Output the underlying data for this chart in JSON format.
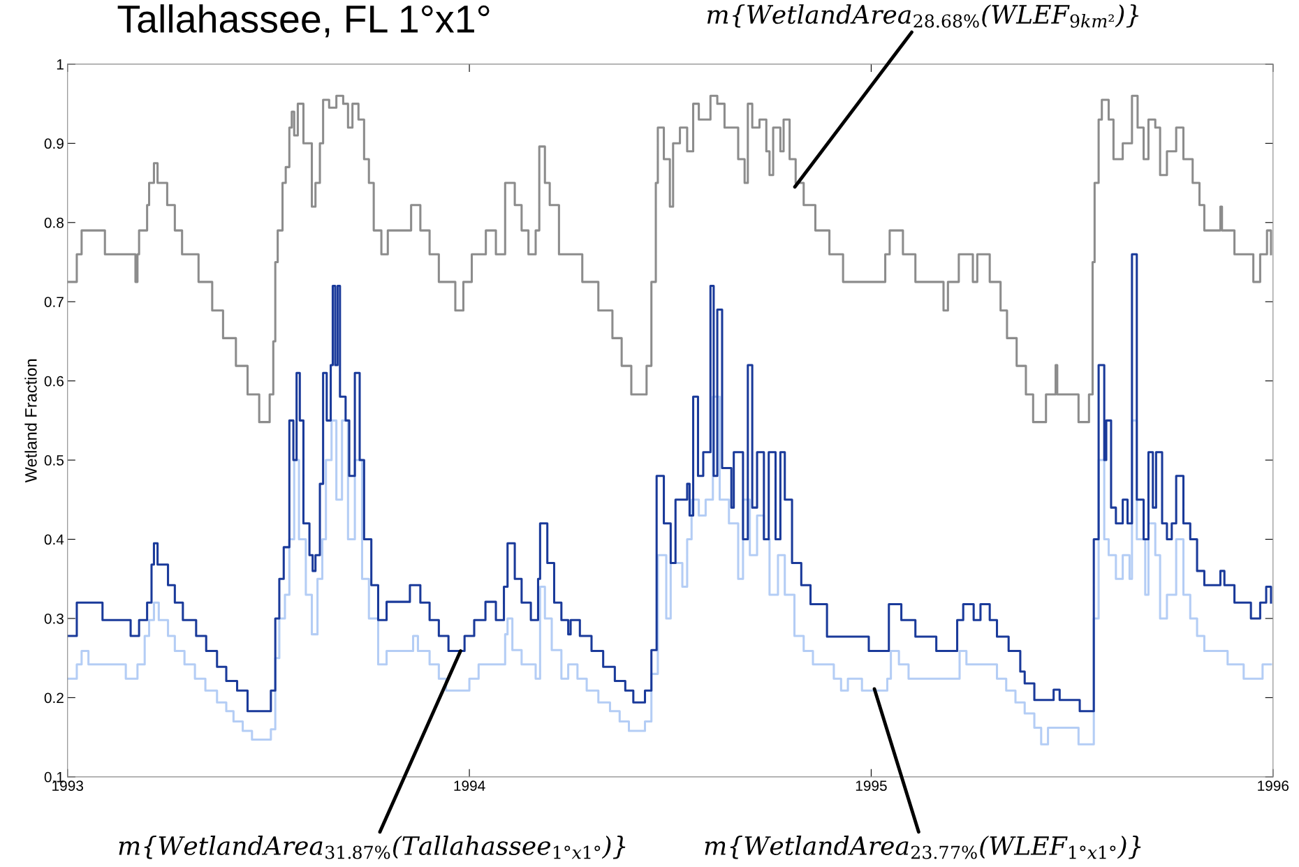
{
  "chart_data": {
    "type": "step",
    "title": "Tallahassee, FL 1°x1°",
    "ylabel": "Wetland Fraction",
    "xlim": [
      1993,
      1996
    ],
    "xticks": [
      1993,
      1994,
      1995,
      1996
    ],
    "ylim": [
      0.1,
      1
    ],
    "yticks": [
      0.1,
      0.2,
      0.3,
      0.4,
      0.5,
      0.6,
      0.7,
      0.8,
      0.9,
      1
    ],
    "grid": false,
    "line_style": "solid",
    "marker": "none",
    "series": [
      {
        "color": "#8c8c8c",
        "x": [
          1993.0,
          1993.023,
          1993.035,
          1993.093,
          1993.169,
          1993.174,
          1993.178,
          1993.198,
          1993.203,
          1993.215,
          1993.224,
          1993.248,
          1993.267,
          1993.285,
          1993.326,
          1993.36,
          1993.387,
          1993.419,
          1993.448,
          1993.477,
          1993.503,
          1993.512,
          1993.517,
          1993.523,
          1993.535,
          1993.543,
          1993.552,
          1993.558,
          1993.564,
          1993.573,
          1993.587,
          1993.608,
          1993.617,
          1993.628,
          1993.636,
          1993.651,
          1993.669,
          1993.686,
          1993.698,
          1993.709,
          1993.724,
          1993.738,
          1993.75,
          1993.762,
          1993.781,
          1993.797,
          1993.855,
          1993.878,
          1993.901,
          1993.924,
          1993.965,
          1993.985,
          1994.006,
          1994.041,
          1994.066,
          1994.089,
          1994.113,
          1994.13,
          1994.147,
          1994.165,
          1994.174,
          1994.188,
          1994.2,
          1994.223,
          1994.281,
          1994.321,
          1994.356,
          1994.379,
          1994.403,
          1994.441,
          1994.453,
          1994.464,
          1994.469,
          1994.484,
          1994.499,
          1994.507,
          1994.524,
          1994.542,
          1994.557,
          1994.571,
          1994.6,
          1994.617,
          1994.635,
          1994.669,
          1994.685,
          1994.693,
          1994.704,
          1994.722,
          1994.739,
          1994.747,
          1994.756,
          1994.774,
          1994.782,
          1994.797,
          1994.812,
          1994.832,
          1994.861,
          1994.896,
          1994.93,
          1995.035,
          1995.046,
          1995.079,
          1995.11,
          1995.18,
          1995.191,
          1995.218,
          1995.253,
          1995.264,
          1995.295,
          1995.322,
          1995.338,
          1995.362,
          1995.385,
          1995.403,
          1995.435,
          1995.459,
          1995.463,
          1995.516,
          1995.542,
          1995.551,
          1995.556,
          1995.566,
          1995.574,
          1995.591,
          1995.603,
          1995.626,
          1995.649,
          1995.663,
          1995.678,
          1995.69,
          1995.707,
          1995.719,
          1995.736,
          1995.759,
          1995.777,
          1995.8,
          1995.817,
          1995.829,
          1995.869,
          1995.873,
          1995.904,
          1995.951,
          1995.968,
          1995.985,
          1995.995
        ],
        "values": [
          0.725,
          0.76,
          0.79,
          0.76,
          0.725,
          0.76,
          0.79,
          0.822,
          0.85,
          0.875,
          0.85,
          0.822,
          0.79,
          0.76,
          0.725,
          0.689,
          0.654,
          0.619,
          0.583,
          0.548,
          0.583,
          0.65,
          0.75,
          0.79,
          0.85,
          0.87,
          0.92,
          0.94,
          0.91,
          0.95,
          0.9,
          0.82,
          0.85,
          0.9,
          0.955,
          0.945,
          0.96,
          0.95,
          0.92,
          0.95,
          0.93,
          0.88,
          0.85,
          0.79,
          0.76,
          0.79,
          0.822,
          0.79,
          0.76,
          0.725,
          0.689,
          0.725,
          0.76,
          0.79,
          0.76,
          0.85,
          0.822,
          0.79,
          0.76,
          0.79,
          0.896,
          0.85,
          0.822,
          0.76,
          0.725,
          0.689,
          0.654,
          0.619,
          0.583,
          0.619,
          0.725,
          0.85,
          0.92,
          0.88,
          0.82,
          0.9,
          0.92,
          0.89,
          0.95,
          0.93,
          0.96,
          0.95,
          0.92,
          0.88,
          0.85,
          0.95,
          0.92,
          0.93,
          0.89,
          0.86,
          0.92,
          0.89,
          0.93,
          0.88,
          0.85,
          0.822,
          0.79,
          0.76,
          0.725,
          0.76,
          0.79,
          0.76,
          0.725,
          0.689,
          0.725,
          0.76,
          0.725,
          0.76,
          0.725,
          0.689,
          0.654,
          0.619,
          0.583,
          0.548,
          0.583,
          0.62,
          0.583,
          0.548,
          0.583,
          0.75,
          0.85,
          0.93,
          0.955,
          0.93,
          0.88,
          0.9,
          0.96,
          0.92,
          0.88,
          0.93,
          0.92,
          0.86,
          0.89,
          0.92,
          0.88,
          0.85,
          0.822,
          0.79,
          0.82,
          0.79,
          0.76,
          0.725,
          0.76,
          0.79,
          0.76
        ]
      },
      {
        "color": "#b4cdf5",
        "x": [
          1993.0,
          1993.023,
          1993.035,
          1993.052,
          1993.145,
          1993.174,
          1993.192,
          1993.203,
          1993.215,
          1993.227,
          1993.25,
          1993.267,
          1993.291,
          1993.317,
          1993.343,
          1993.372,
          1993.395,
          1993.413,
          1993.436,
          1993.459,
          1993.506,
          1993.517,
          1993.527,
          1993.541,
          1993.552,
          1993.564,
          1993.576,
          1993.593,
          1993.608,
          1993.622,
          1993.634,
          1993.643,
          1993.657,
          1993.669,
          1993.683,
          1993.698,
          1993.715,
          1993.733,
          1993.75,
          1993.773,
          1993.794,
          1993.86,
          1993.872,
          1993.901,
          1993.924,
          1993.942,
          1994.0,
          1994.023,
          1994.089,
          1994.095,
          1994.107,
          1994.13,
          1994.165,
          1994.176,
          1994.188,
          1994.205,
          1994.229,
          1994.246,
          1994.269,
          1994.292,
          1994.321,
          1994.35,
          1994.374,
          1994.397,
          1994.437,
          1994.453,
          1994.469,
          1994.49,
          1994.501,
          1994.53,
          1994.542,
          1994.553,
          1994.571,
          1994.588,
          1994.606,
          1994.623,
          1994.646,
          1994.669,
          1994.681,
          1994.698,
          1994.716,
          1994.733,
          1994.747,
          1994.768,
          1994.785,
          1994.809,
          1994.832,
          1994.855,
          1994.907,
          1994.925,
          1994.942,
          1994.977,
          1995.04,
          1995.049,
          1995.069,
          1995.093,
          1995.22,
          1995.237,
          1995.313,
          1995.336,
          1995.359,
          1995.382,
          1995.406,
          1995.423,
          1995.44,
          1995.516,
          1995.554,
          1995.566,
          1995.58,
          1995.591,
          1995.609,
          1995.626,
          1995.643,
          1995.649,
          1995.661,
          1995.682,
          1995.69,
          1995.707,
          1995.719,
          1995.736,
          1995.759,
          1995.777,
          1995.794,
          1995.811,
          1995.829,
          1995.887,
          1995.927,
          1995.974,
          1995.995
        ],
        "values": [
          0.224,
          0.242,
          0.259,
          0.242,
          0.224,
          0.242,
          0.278,
          0.298,
          0.32,
          0.298,
          0.278,
          0.259,
          0.242,
          0.224,
          0.209,
          0.194,
          0.183,
          0.17,
          0.158,
          0.147,
          0.16,
          0.25,
          0.3,
          0.33,
          0.4,
          0.5,
          0.4,
          0.33,
          0.28,
          0.35,
          0.4,
          0.5,
          0.55,
          0.45,
          0.55,
          0.4,
          0.5,
          0.35,
          0.3,
          0.242,
          0.259,
          0.278,
          0.259,
          0.242,
          0.224,
          0.209,
          0.224,
          0.242,
          0.28,
          0.3,
          0.26,
          0.242,
          0.224,
          0.34,
          0.3,
          0.26,
          0.224,
          0.242,
          0.224,
          0.209,
          0.194,
          0.183,
          0.17,
          0.158,
          0.17,
          0.23,
          0.38,
          0.3,
          0.37,
          0.34,
          0.4,
          0.45,
          0.43,
          0.45,
          0.58,
          0.45,
          0.42,
          0.35,
          0.45,
          0.38,
          0.43,
          0.4,
          0.33,
          0.38,
          0.33,
          0.278,
          0.259,
          0.242,
          0.224,
          0.209,
          0.224,
          0.209,
          0.224,
          0.259,
          0.242,
          0.224,
          0.259,
          0.242,
          0.224,
          0.209,
          0.194,
          0.18,
          0.162,
          0.141,
          0.162,
          0.141,
          0.3,
          0.5,
          0.4,
          0.38,
          0.35,
          0.38,
          0.35,
          0.55,
          0.4,
          0.33,
          0.42,
          0.38,
          0.3,
          0.33,
          0.4,
          0.33,
          0.3,
          0.278,
          0.259,
          0.242,
          0.224,
          0.242,
          0.242
        ]
      },
      {
        "color": "#1a3a9a",
        "x": [
          1993.0,
          1993.023,
          1993.087,
          1993.157,
          1993.178,
          1993.198,
          1993.209,
          1993.215,
          1993.224,
          1993.25,
          1993.267,
          1993.287,
          1993.32,
          1993.345,
          1993.372,
          1993.395,
          1993.422,
          1993.448,
          1993.506,
          1993.517,
          1993.527,
          1993.538,
          1993.552,
          1993.562,
          1993.57,
          1993.578,
          1993.587,
          1993.602,
          1993.61,
          1993.617,
          1993.628,
          1993.636,
          1993.645,
          1993.655,
          1993.66,
          1993.666,
          1993.672,
          1993.678,
          1993.692,
          1993.701,
          1993.715,
          1993.727,
          1993.738,
          1993.756,
          1993.773,
          1993.794,
          1993.852,
          1993.878,
          1993.901,
          1993.924,
          1993.948,
          1993.988,
          1994.012,
          1994.04,
          1994.066,
          1994.086,
          1994.095,
          1994.113,
          1994.13,
          1994.153,
          1994.171,
          1994.176,
          1994.194,
          1994.211,
          1994.229,
          1994.246,
          1994.252,
          1994.275,
          1994.304,
          1994.333,
          1994.362,
          1994.388,
          1994.408,
          1994.437,
          1994.453,
          1994.466,
          1994.484,
          1994.501,
          1994.513,
          1994.542,
          1994.548,
          1994.557,
          1994.569,
          1994.582,
          1994.6,
          1994.608,
          1994.617,
          1994.629,
          1994.652,
          1994.658,
          1994.681,
          1994.693,
          1994.704,
          1994.716,
          1994.733,
          1994.745,
          1994.762,
          1994.774,
          1994.785,
          1994.803,
          1994.826,
          1994.849,
          1994.89,
          1994.994,
          1995.044,
          1995.075,
          1995.11,
          1995.162,
          1995.214,
          1995.229,
          1995.255,
          1995.272,
          1995.295,
          1995.313,
          1995.342,
          1995.371,
          1995.382,
          1995.406,
          1995.454,
          1995.469,
          1995.519,
          1995.554,
          1995.566,
          1995.58,
          1995.585,
          1995.597,
          1995.609,
          1995.626,
          1995.638,
          1995.649,
          1995.661,
          1995.678,
          1995.69,
          1995.701,
          1995.709,
          1995.724,
          1995.736,
          1995.748,
          1995.759,
          1995.777,
          1995.794,
          1995.811,
          1995.829,
          1995.869,
          1995.879,
          1995.904,
          1995.945,
          1995.968,
          1995.983,
          1995.995
        ],
        "values": [
          0.278,
          0.32,
          0.298,
          0.278,
          0.298,
          0.32,
          0.368,
          0.395,
          0.368,
          0.342,
          0.32,
          0.298,
          0.278,
          0.259,
          0.239,
          0.221,
          0.209,
          0.183,
          0.209,
          0.3,
          0.35,
          0.39,
          0.55,
          0.5,
          0.61,
          0.55,
          0.42,
          0.38,
          0.36,
          0.38,
          0.47,
          0.61,
          0.55,
          0.62,
          0.72,
          0.62,
          0.72,
          0.58,
          0.55,
          0.48,
          0.61,
          0.5,
          0.4,
          0.342,
          0.298,
          0.321,
          0.342,
          0.32,
          0.298,
          0.278,
          0.259,
          0.278,
          0.298,
          0.321,
          0.298,
          0.34,
          0.395,
          0.35,
          0.32,
          0.298,
          0.35,
          0.42,
          0.37,
          0.32,
          0.298,
          0.28,
          0.298,
          0.278,
          0.259,
          0.239,
          0.221,
          0.209,
          0.194,
          0.209,
          0.26,
          0.48,
          0.42,
          0.37,
          0.45,
          0.47,
          0.43,
          0.58,
          0.48,
          0.51,
          0.72,
          0.48,
          0.69,
          0.49,
          0.44,
          0.51,
          0.4,
          0.62,
          0.44,
          0.51,
          0.4,
          0.51,
          0.4,
          0.51,
          0.45,
          0.37,
          0.342,
          0.318,
          0.277,
          0.259,
          0.318,
          0.298,
          0.277,
          0.259,
          0.298,
          0.318,
          0.298,
          0.318,
          0.298,
          0.277,
          0.259,
          0.233,
          0.218,
          0.197,
          0.21,
          0.197,
          0.183,
          0.4,
          0.62,
          0.5,
          0.55,
          0.44,
          0.42,
          0.45,
          0.42,
          0.76,
          0.45,
          0.4,
          0.51,
          0.44,
          0.51,
          0.42,
          0.4,
          0.42,
          0.48,
          0.42,
          0.4,
          0.36,
          0.342,
          0.36,
          0.342,
          0.32,
          0.3,
          0.32,
          0.34,
          0.32
        ]
      }
    ],
    "annotations": [
      {
        "text": "m{WetlandArea$_{28.68%}$(WLEF$_{9km²}$)}",
        "x": 1994.81,
        "y": 0.845
      },
      {
        "text": "m{WetlandArea$_{31.87%}$(Tallahassee$_{1°x1°}$)}",
        "x": 1993.978,
        "y": 0.259
      },
      {
        "text": "m{WetlandArea$_{23.77%}$(WLEF$_{1°x1°}$)}",
        "x": 1995.008,
        "y": 0.211
      }
    ]
  }
}
